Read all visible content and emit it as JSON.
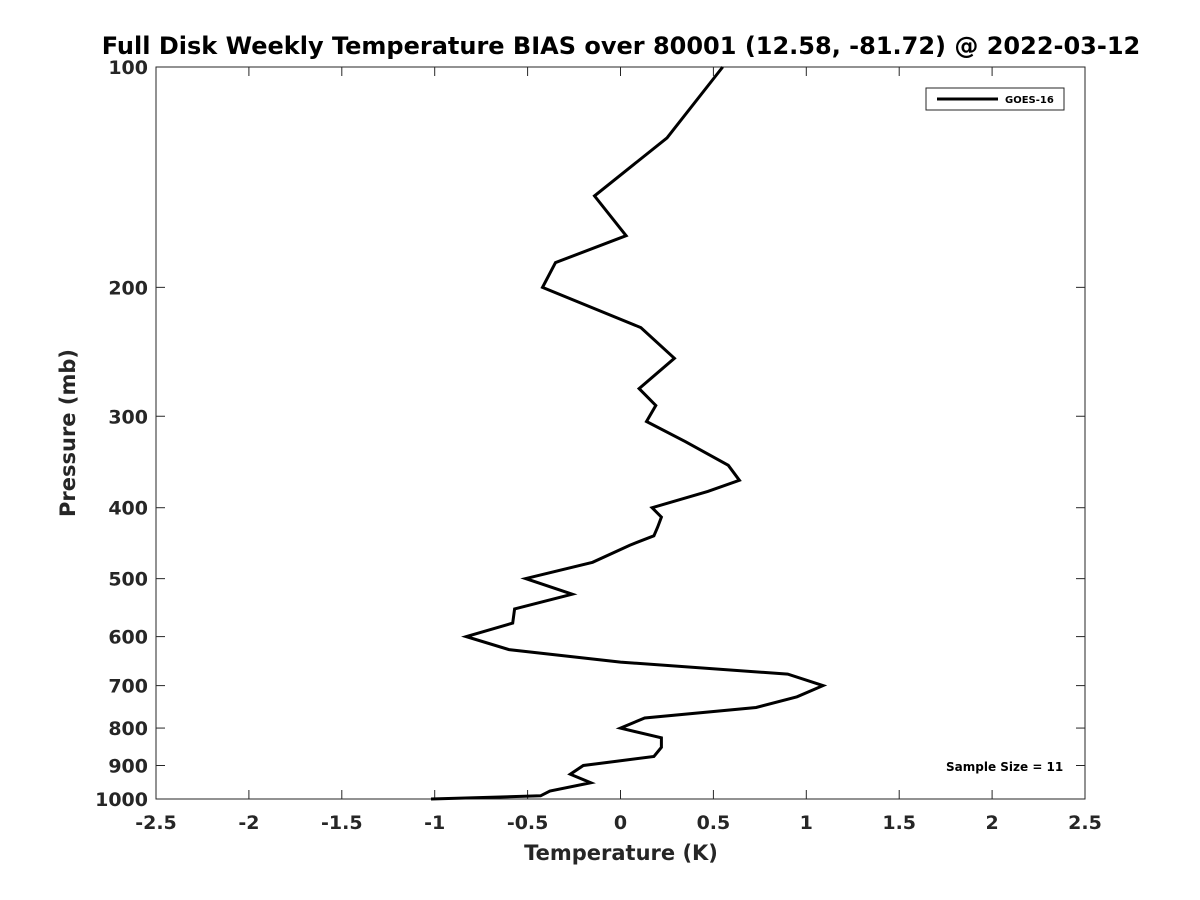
{
  "chart_data": {
    "type": "line",
    "title": "Full Disk Weekly Temperature BIAS over 80001 (12.58, -81.72) @ 2022-03-12",
    "xlabel": "Temperature (K)",
    "ylabel": "Pressure (mb)",
    "xlim": [
      -2.5,
      2.5
    ],
    "ylim": [
      100,
      1000
    ],
    "y_scale": "log",
    "y_reversed": true,
    "x_ticks": [
      -2.5,
      -2,
      -1.5,
      -1,
      -0.5,
      0,
      0.5,
      1,
      1.5,
      2,
      2.5
    ],
    "x_tick_labels": [
      "-2.5",
      "-2",
      "-1.5",
      "-1",
      "-0.5",
      "0",
      "0.5",
      "1",
      "1.5",
      "2",
      "2.5"
    ],
    "y_ticks": [
      100,
      200,
      300,
      400,
      500,
      600,
      700,
      800,
      900,
      1000
    ],
    "y_tick_labels": [
      "100",
      "200",
      "300",
      "400",
      "500",
      "600",
      "700",
      "800",
      "900",
      "1000"
    ],
    "grid": false,
    "legend_position": "top-right",
    "series": [
      {
        "name": "GOES-16",
        "color": "#000000",
        "points": [
          {
            "pressure": 100,
            "temp": 0.55
          },
          {
            "pressure": 125,
            "temp": 0.25
          },
          {
            "pressure": 150,
            "temp": -0.14
          },
          {
            "pressure": 170,
            "temp": 0.03
          },
          {
            "pressure": 185,
            "temp": -0.35
          },
          {
            "pressure": 200,
            "temp": -0.42
          },
          {
            "pressure": 227,
            "temp": 0.11
          },
          {
            "pressure": 250,
            "temp": 0.29
          },
          {
            "pressure": 275,
            "temp": 0.1
          },
          {
            "pressure": 290,
            "temp": 0.19
          },
          {
            "pressure": 305,
            "temp": 0.14
          },
          {
            "pressure": 325,
            "temp": 0.35
          },
          {
            "pressure": 350,
            "temp": 0.58
          },
          {
            "pressure": 367,
            "temp": 0.64
          },
          {
            "pressure": 380,
            "temp": 0.47
          },
          {
            "pressure": 400,
            "temp": 0.17
          },
          {
            "pressure": 412,
            "temp": 0.22
          },
          {
            "pressure": 425,
            "temp": 0.2
          },
          {
            "pressure": 437,
            "temp": 0.18
          },
          {
            "pressure": 450,
            "temp": 0.05
          },
          {
            "pressure": 475,
            "temp": -0.15
          },
          {
            "pressure": 500,
            "temp": -0.51
          },
          {
            "pressure": 525,
            "temp": -0.26
          },
          {
            "pressure": 550,
            "temp": -0.57
          },
          {
            "pressure": 575,
            "temp": -0.58
          },
          {
            "pressure": 600,
            "temp": -0.83
          },
          {
            "pressure": 625,
            "temp": -0.6
          },
          {
            "pressure": 650,
            "temp": 0.0
          },
          {
            "pressure": 675,
            "temp": 0.9
          },
          {
            "pressure": 700,
            "temp": 1.09
          },
          {
            "pressure": 725,
            "temp": 0.95
          },
          {
            "pressure": 750,
            "temp": 0.73
          },
          {
            "pressure": 775,
            "temp": 0.13
          },
          {
            "pressure": 800,
            "temp": 0.0
          },
          {
            "pressure": 825,
            "temp": 0.22
          },
          {
            "pressure": 850,
            "temp": 0.22
          },
          {
            "pressure": 875,
            "temp": 0.18
          },
          {
            "pressure": 900,
            "temp": -0.2
          },
          {
            "pressure": 925,
            "temp": -0.27
          },
          {
            "pressure": 950,
            "temp": -0.16
          },
          {
            "pressure": 975,
            "temp": -0.38
          },
          {
            "pressure": 990,
            "temp": -0.43
          },
          {
            "pressure": 1000,
            "temp": -1.02
          }
        ]
      }
    ],
    "annotation": "Sample Size = 11"
  }
}
